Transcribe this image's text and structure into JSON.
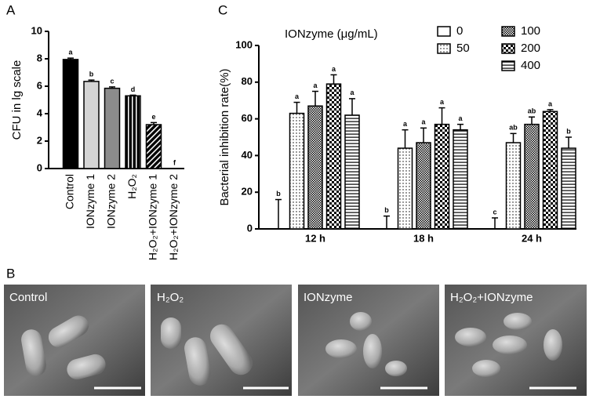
{
  "chart_data": [
    {
      "type": "bar",
      "panel_label": "A",
      "ylabel": "CFU in lg scale",
      "categories": [
        "Control",
        "IONzyme 1",
        "IONzyme 2",
        "H₂O₂",
        "H₂O₂+IONzyme 1",
        "H₂O₂+IONzyme 2"
      ],
      "values": [
        7.95,
        6.35,
        5.85,
        5.3,
        3.2,
        0
      ],
      "errors": [
        0.1,
        0.1,
        0.1,
        0.05,
        0.15,
        0
      ],
      "labels": [
        "a",
        "b",
        "c",
        "d",
        "e",
        "f"
      ],
      "colors": [
        "#000000",
        "#d4d4d4",
        "#8c8c8c",
        "#000000",
        "#3a3a3a",
        "#000000"
      ],
      "patterns": [
        "solid",
        "solid",
        "solid",
        "vstripe",
        "diagonal",
        "solid"
      ],
      "ylim": [
        0,
        10
      ],
      "yticks": [
        0,
        2,
        4,
        6,
        8,
        10
      ]
    },
    {
      "type": "grouped_bar",
      "panel_label": "C",
      "ylabel": "Bacterial inhibition rate(%)",
      "legend_title": "IONzyme (μg/mL)",
      "categories": [
        "12 h",
        "18 h",
        "24 h"
      ],
      "series": [
        {
          "name": "0",
          "pattern": "solid",
          "color": "#ffffff",
          "values": [
            0,
            0,
            0
          ],
          "errors": [
            16,
            7,
            6
          ],
          "labels": [
            "b",
            "b",
            "c"
          ]
        },
        {
          "name": "50",
          "pattern": "dots",
          "color": "#ffffff",
          "values": [
            63,
            44,
            47
          ],
          "errors": [
            6,
            10,
            5
          ],
          "labels": [
            "a",
            "a",
            "ab"
          ]
        },
        {
          "name": "100",
          "pattern": "check1",
          "color": "#ffffff",
          "values": [
            67,
            47,
            57
          ],
          "errors": [
            8,
            8,
            4
          ],
          "labels": [
            "a",
            "a",
            "ab"
          ]
        },
        {
          "name": "200",
          "pattern": "check2",
          "color": "#ffffff",
          "values": [
            79,
            57,
            64
          ],
          "errors": [
            5,
            9,
            1
          ],
          "labels": [
            "a",
            "a",
            "a"
          ]
        },
        {
          "name": "400",
          "pattern": "hlines",
          "color": "#ffffff",
          "values": [
            62,
            54,
            44
          ],
          "errors": [
            9,
            3,
            6
          ],
          "labels": [
            "a",
            "a",
            "b"
          ]
        }
      ],
      "ylim": [
        0,
        100
      ],
      "yticks": [
        0,
        20,
        40,
        60,
        80,
        100
      ]
    }
  ],
  "panel_b": {
    "label": "B",
    "images": [
      {
        "caption": "Control"
      },
      {
        "caption": "H₂O₂"
      },
      {
        "caption": "IONzyme"
      },
      {
        "caption": "H₂O₂+IONzyme"
      }
    ]
  }
}
